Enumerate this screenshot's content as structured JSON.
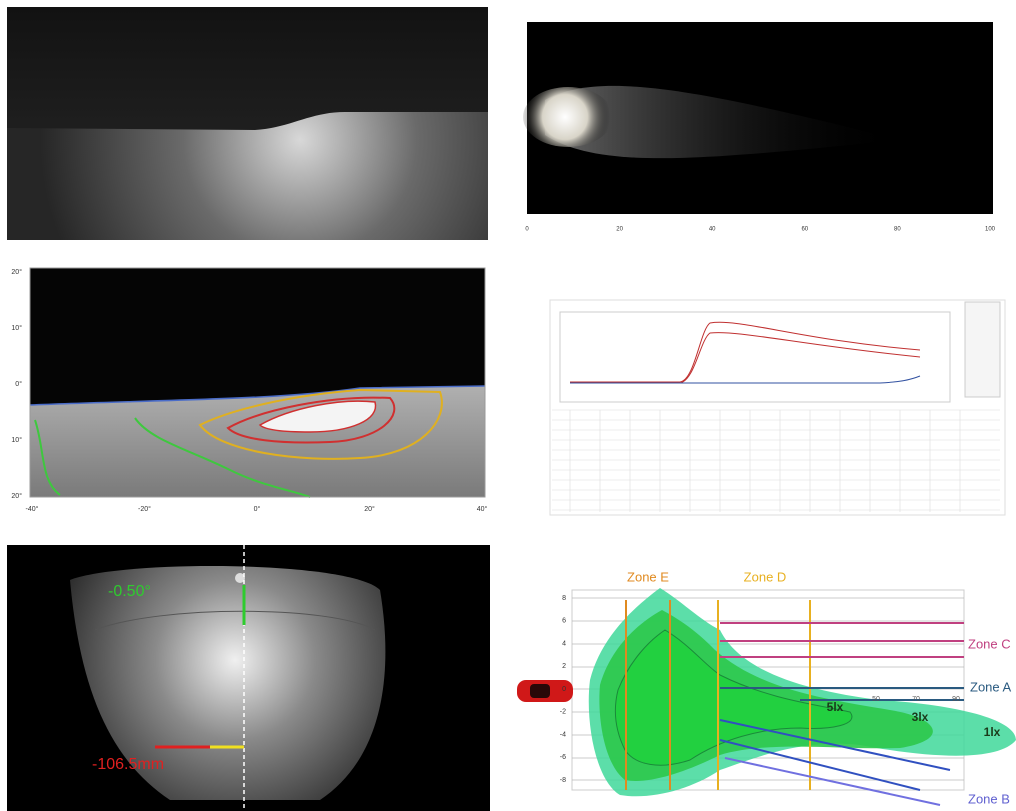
{
  "side_view": {
    "x_labels": [
      "0",
      "20",
      "40",
      "60",
      "80",
      "100"
    ]
  },
  "isolux_map": {
    "y_labels": [
      "20°",
      "10°",
      "0°",
      "10°",
      "20°"
    ],
    "x_labels": [
      "-40°",
      "-20°",
      "0°",
      "20°",
      "40°"
    ]
  },
  "aim_test": {
    "angle": "-0.50°",
    "offset": "-106.5mm"
  },
  "zone_diagram": {
    "y_labels": [
      "8",
      "6",
      "4",
      "2",
      "0",
      "-2",
      "-4",
      "-6",
      "-8"
    ],
    "x_labels": [
      "50",
      "70",
      "90"
    ],
    "zones": [
      "Zone E",
      "Zone D",
      "Zone C",
      "Zone A",
      "Zone B"
    ],
    "isolux": [
      "5lx",
      "3lx",
      "1lx"
    ]
  }
}
